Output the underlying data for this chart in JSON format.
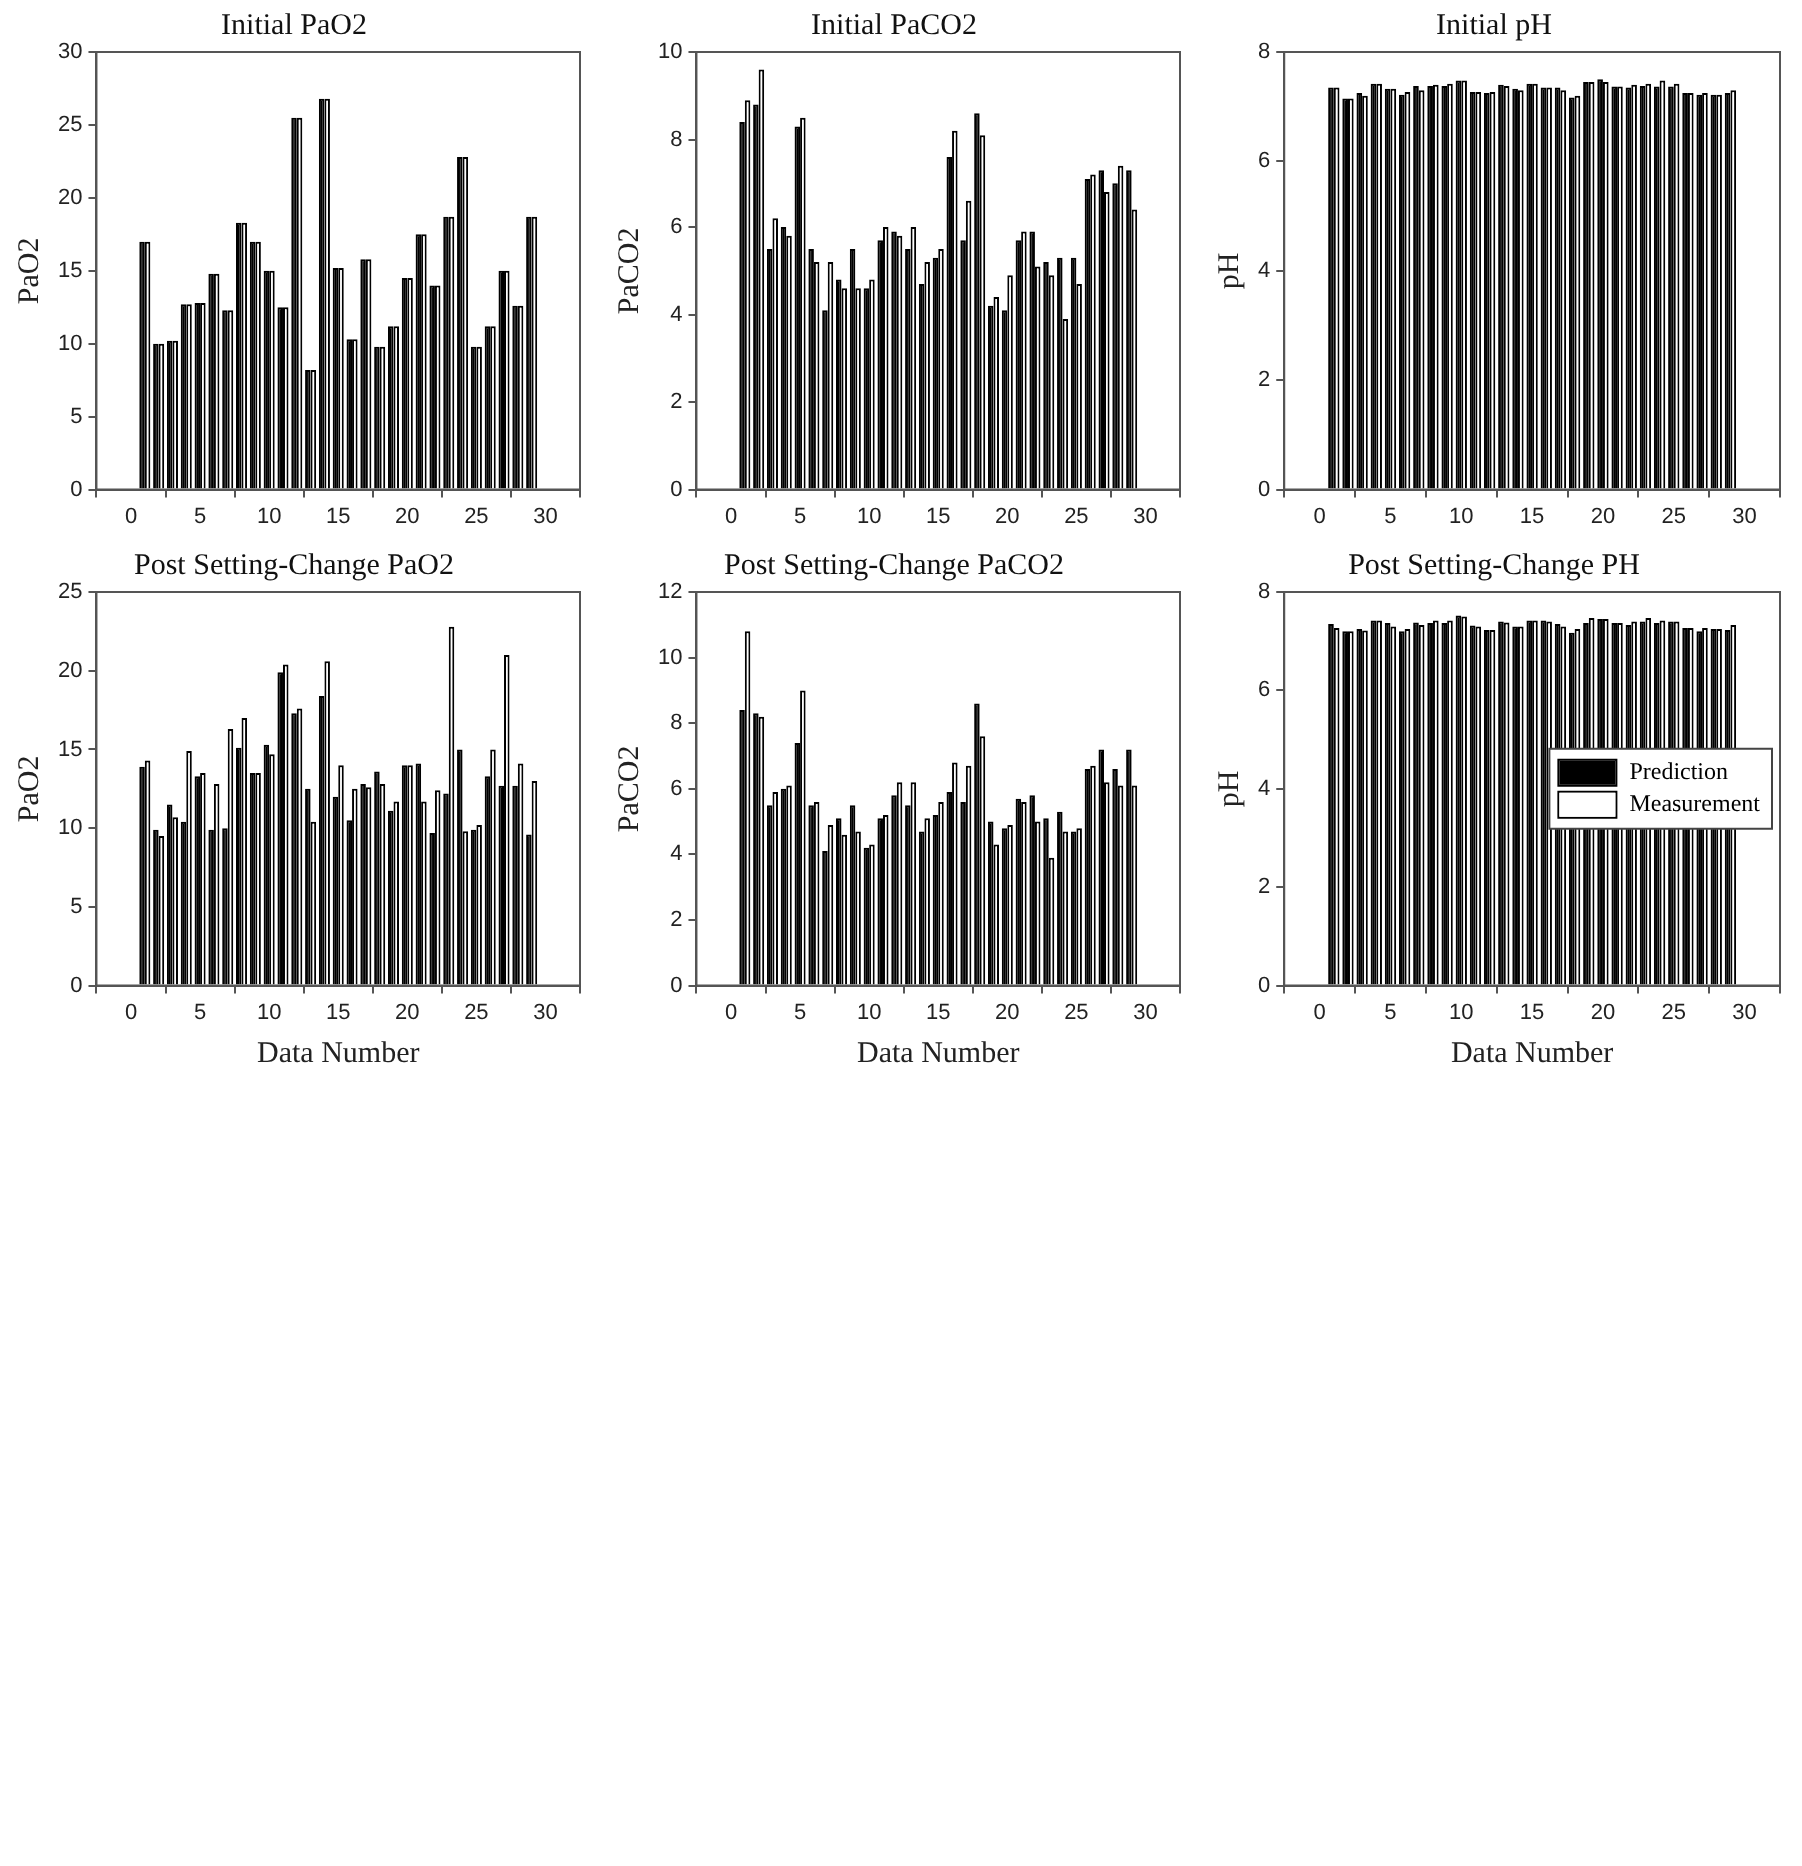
{
  "chart_data": [
    {
      "type": "bar",
      "title": "Initial PaO2",
      "ylabel": "PaO2",
      "x": [
        1,
        2,
        3,
        4,
        5,
        6,
        7,
        8,
        9,
        10,
        11,
        12,
        13,
        14,
        15,
        16,
        17,
        18,
        19,
        20,
        21,
        22,
        23,
        24,
        25,
        26,
        27,
        28,
        29
      ],
      "xlim": [
        0,
        30
      ],
      "xticks": [
        0,
        5,
        10,
        15,
        20,
        25,
        30
      ],
      "ylim": [
        0,
        30
      ],
      "yticks": [
        0,
        5,
        10,
        15,
        20,
        25,
        30
      ],
      "series": [
        {
          "color": "#000000",
          "values": [
            17,
            10,
            10.2,
            12.7,
            12.8,
            14.8,
            12.3,
            18.3,
            17,
            15,
            12.5,
            25.5,
            8.2,
            26.8,
            15.2,
            10.3,
            15.8,
            9.8,
            11.2,
            14.5,
            17.5,
            14,
            18.7,
            22.8,
            9.8,
            11.2,
            15,
            12.6,
            18.7
          ]
        },
        {
          "color": "#ffffff",
          "values": [
            17,
            10,
            10.2,
            12.7,
            12.8,
            14.8,
            12.3,
            18.3,
            17,
            15,
            12.5,
            25.5,
            8.2,
            26.8,
            15.2,
            10.3,
            15.8,
            9.8,
            11.2,
            14.5,
            17.5,
            14,
            18.7,
            22.8,
            9.8,
            11.2,
            15,
            12.6,
            18.7
          ]
        }
      ]
    },
    {
      "type": "bar",
      "title": "Initial PaCO2",
      "ylabel": "PaCO2",
      "x": [
        1,
        2,
        3,
        4,
        5,
        6,
        7,
        8,
        9,
        10,
        11,
        12,
        13,
        14,
        15,
        16,
        17,
        18,
        19,
        20,
        21,
        22,
        23,
        24,
        25,
        26,
        27,
        28,
        29
      ],
      "xlim": [
        0,
        30
      ],
      "xticks": [
        0,
        5,
        10,
        15,
        20,
        25,
        30
      ],
      "ylim": [
        0,
        10
      ],
      "yticks": [
        0,
        2,
        4,
        6,
        8,
        10
      ],
      "series": [
        {
          "color": "#000000",
          "values": [
            8.4,
            8.8,
            5.5,
            6.0,
            8.3,
            5.5,
            4.1,
            4.8,
            5.5,
            4.6,
            5.7,
            5.9,
            5.5,
            4.7,
            5.3,
            7.6,
            5.7,
            8.6,
            4.2,
            4.1,
            5.7,
            5.9,
            5.2,
            5.3,
            5.3,
            7.1,
            7.3,
            7.0,
            7.3
          ]
        },
        {
          "color": "#ffffff",
          "values": [
            8.9,
            9.6,
            6.2,
            5.8,
            8.5,
            5.2,
            5.2,
            4.6,
            4.6,
            4.8,
            6.0,
            5.8,
            6.0,
            5.2,
            5.5,
            8.2,
            6.6,
            8.1,
            4.4,
            4.9,
            5.9,
            5.1,
            4.9,
            3.9,
            4.7,
            7.2,
            6.8,
            7.4,
            6.4
          ]
        }
      ]
    },
    {
      "type": "bar",
      "title": "Initial pH",
      "ylabel": "pH",
      "x": [
        1,
        2,
        3,
        4,
        5,
        6,
        7,
        8,
        9,
        10,
        11,
        12,
        13,
        14,
        15,
        16,
        17,
        18,
        19,
        20,
        21,
        22,
        23,
        24,
        25,
        26,
        27,
        28,
        29
      ],
      "xlim": [
        0,
        30
      ],
      "xticks": [
        0,
        5,
        10,
        15,
        20,
        25,
        30
      ],
      "ylim": [
        0,
        8
      ],
      "yticks": [
        0,
        2,
        4,
        6,
        8
      ],
      "series": [
        {
          "color": "#000000",
          "values": [
            7.35,
            7.15,
            7.25,
            7.42,
            7.33,
            7.22,
            7.38,
            7.38,
            7.38,
            7.48,
            7.27,
            7.25,
            7.4,
            7.33,
            7.42,
            7.35,
            7.35,
            7.17,
            7.45,
            7.5,
            7.37,
            7.35,
            7.38,
            7.37,
            7.37,
            7.25,
            7.22,
            7.22,
            7.25
          ]
        },
        {
          "color": "#ffffff",
          "values": [
            7.35,
            7.15,
            7.2,
            7.42,
            7.33,
            7.27,
            7.3,
            7.4,
            7.42,
            7.48,
            7.27,
            7.27,
            7.38,
            7.3,
            7.42,
            7.35,
            7.3,
            7.2,
            7.45,
            7.45,
            7.37,
            7.4,
            7.42,
            7.48,
            7.42,
            7.25,
            7.25,
            7.22,
            7.3
          ]
        }
      ]
    },
    {
      "type": "bar",
      "title": "Post Setting-Change PaO2",
      "xlabel": "Data Number",
      "ylabel": "PaO2",
      "x": [
        1,
        2,
        3,
        4,
        5,
        6,
        7,
        8,
        9,
        10,
        11,
        12,
        13,
        14,
        15,
        16,
        17,
        18,
        19,
        20,
        21,
        22,
        23,
        24,
        25,
        26,
        27,
        28,
        29
      ],
      "xlim": [
        0,
        30
      ],
      "xticks": [
        0,
        5,
        10,
        15,
        20,
        25,
        30
      ],
      "ylim": [
        0,
        25
      ],
      "yticks": [
        0,
        5,
        10,
        15,
        20,
        25
      ],
      "series": [
        {
          "color": "#000000",
          "values": [
            13.9,
            9.9,
            11.5,
            10.4,
            13.3,
            9.9,
            10,
            15.1,
            13.5,
            15.3,
            19.9,
            17.3,
            12.5,
            18.4,
            12,
            10.5,
            12.8,
            13.6,
            11.1,
            14,
            14.1,
            9.7,
            12.2,
            15,
            9.9,
            13.3,
            12.7,
            12.7,
            9.6
          ]
        },
        {
          "color": "#ffffff",
          "values": [
            14.3,
            9.5,
            10.7,
            14.9,
            13.5,
            12.8,
            16.3,
            17,
            13.5,
            14.7,
            20.4,
            17.6,
            10.4,
            20.6,
            14,
            12.5,
            12.6,
            12.8,
            11.7,
            14,
            11.7,
            12.4,
            22.8,
            9.8,
            10.2,
            15,
            21,
            14.1,
            13
          ]
        }
      ]
    },
    {
      "type": "bar",
      "title": "Post Setting-Change PaCO2",
      "xlabel": "Data Number",
      "ylabel": "PaCO2",
      "x": [
        1,
        2,
        3,
        4,
        5,
        6,
        7,
        8,
        9,
        10,
        11,
        12,
        13,
        14,
        15,
        16,
        17,
        18,
        19,
        20,
        21,
        22,
        23,
        24,
        25,
        26,
        27,
        28,
        29
      ],
      "xlim": [
        0,
        30
      ],
      "xticks": [
        0,
        5,
        10,
        15,
        20,
        25,
        30
      ],
      "ylim": [
        0,
        12
      ],
      "yticks": [
        0,
        2,
        4,
        6,
        8,
        10,
        12
      ],
      "series": [
        {
          "color": "#000000",
          "values": [
            8.4,
            8.3,
            5.5,
            6.0,
            7.4,
            5.5,
            4.1,
            5.1,
            5.5,
            4.2,
            5.1,
            5.8,
            5.5,
            4.7,
            5.2,
            5.9,
            5.6,
            8.6,
            5.0,
            4.8,
            5.7,
            5.8,
            5.1,
            5.3,
            4.7,
            6.6,
            7.2,
            6.6,
            7.2
          ]
        },
        {
          "color": "#ffffff",
          "values": [
            10.8,
            8.2,
            5.9,
            6.1,
            9.0,
            5.6,
            4.9,
            4.6,
            4.7,
            4.3,
            5.2,
            6.2,
            6.2,
            5.1,
            5.6,
            6.8,
            6.7,
            7.6,
            4.3,
            4.9,
            5.6,
            5.0,
            3.9,
            4.7,
            4.8,
            6.7,
            6.2,
            6.1,
            6.1
          ]
        }
      ]
    },
    {
      "type": "bar",
      "title": "Post Setting-Change PH",
      "xlabel": "Data Number",
      "ylabel": "pH",
      "x": [
        1,
        2,
        3,
        4,
        5,
        6,
        7,
        8,
        9,
        10,
        11,
        12,
        13,
        14,
        15,
        16,
        17,
        18,
        19,
        20,
        21,
        22,
        23,
        24,
        25,
        26,
        27,
        28,
        29
      ],
      "xlim": [
        0,
        30
      ],
      "xticks": [
        0,
        5,
        10,
        15,
        20,
        25,
        30
      ],
      "ylim": [
        0,
        8
      ],
      "yticks": [
        0,
        2,
        4,
        6,
        8
      ],
      "legend": "right",
      "series": [
        {
          "name": "Prediction",
          "color": "#000000",
          "values": [
            7.35,
            7.2,
            7.25,
            7.42,
            7.37,
            7.2,
            7.38,
            7.37,
            7.37,
            7.52,
            7.32,
            7.23,
            7.4,
            7.3,
            7.42,
            7.42,
            7.35,
            7.17,
            7.37,
            7.45,
            7.37,
            7.33,
            7.4,
            7.37,
            7.4,
            7.27,
            7.2,
            7.25,
            7.23
          ]
        },
        {
          "name": "Measurement",
          "color": "#ffffff",
          "values": [
            7.27,
            7.2,
            7.22,
            7.42,
            7.3,
            7.25,
            7.33,
            7.42,
            7.42,
            7.5,
            7.3,
            7.23,
            7.38,
            7.3,
            7.42,
            7.4,
            7.3,
            7.25,
            7.47,
            7.45,
            7.37,
            7.4,
            7.47,
            7.42,
            7.4,
            7.27,
            7.27,
            7.25,
            7.33
          ]
        }
      ]
    }
  ]
}
